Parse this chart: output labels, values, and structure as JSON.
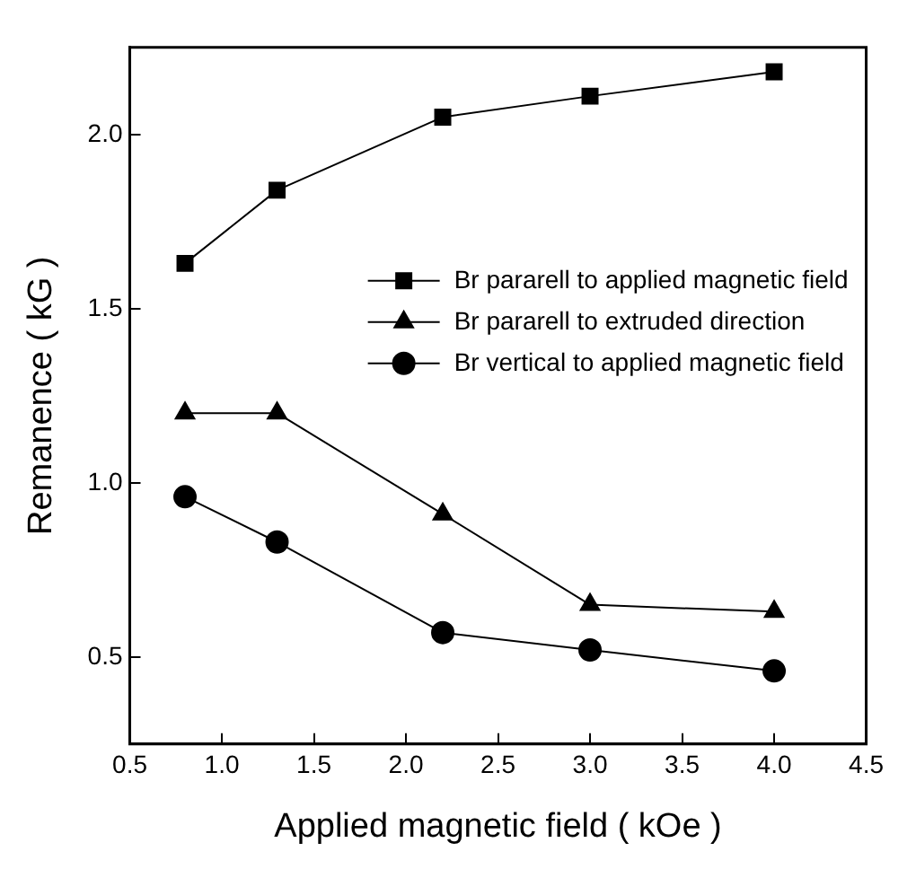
{
  "chart_data": {
    "type": "line",
    "xlabel": "Applied magnetic field ( kOe )",
    "ylabel": "Remanence ( kG )",
    "x": [
      0.8,
      1.3,
      2.2,
      3.0,
      4.0
    ],
    "series": [
      {
        "name": "Br pararell to applied magnetic field",
        "color": "#000000",
        "marker": "square",
        "values": [
          1.63,
          1.84,
          2.05,
          2.11,
          2.18
        ]
      },
      {
        "name": "Br pararell to extruded direction",
        "color": "#000000",
        "marker": "triangle",
        "values": [
          1.2,
          1.2,
          0.91,
          0.65,
          0.63
        ]
      },
      {
        "name": "Br vertical to applied magnetic field",
        "color": "#000000",
        "marker": "circle",
        "values": [
          0.96,
          0.83,
          0.57,
          0.52,
          0.46
        ]
      }
    ],
    "xlim": [
      0.5,
      4.5
    ],
    "xticks": [
      0.5,
      {
        "value": 1,
        "label": "1.0"
      },
      1.5,
      {
        "value": 2,
        "label": "2.0"
      },
      2.5,
      {
        "value": 3,
        "label": "3.0"
      },
      3.5,
      {
        "value": 4,
        "label": "4.0"
      },
      4.5
    ],
    "ylim": [
      0.25,
      2.25
    ],
    "yticks": [
      0.5,
      {
        "value": 1,
        "label": "1.0"
      },
      1.5,
      {
        "value": 2,
        "label": "2.0"
      }
    ],
    "grid": false,
    "legend": "top right"
  }
}
